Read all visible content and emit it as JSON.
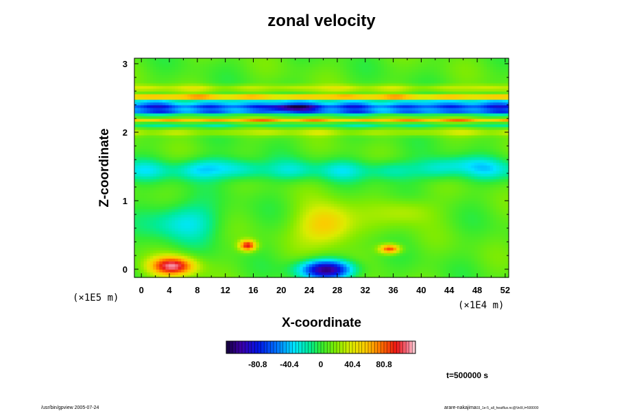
{
  "chart_data": {
    "type": "heatmap",
    "title": "zonal velocity",
    "xlabel": "X-coordinate",
    "ylabel": "Z-coordinate",
    "x_scale_label": "(×1E4 m)",
    "y_scale_label": "(×1E5 m)",
    "xlim": [
      -1,
      52.5
    ],
    "ylim": [
      -0.12,
      3.08
    ],
    "x_ticks": [
      0,
      4,
      8,
      12,
      16,
      20,
      24,
      28,
      32,
      36,
      40,
      44,
      48,
      52
    ],
    "y_ticks": [
      0,
      1,
      2,
      3
    ],
    "colorbar": {
      "vmin": -121,
      "vmax": 121,
      "ticks": [
        -80.8,
        -40.4,
        0,
        40.4,
        80.8
      ],
      "tick_labels": [
        "-80.8",
        "-40.4",
        "0",
        "40.4",
        "80.8"
      ]
    },
    "field": {
      "background": 8,
      "bands": [
        {
          "z": 2.65,
          "width": 0.05,
          "value": 25
        },
        {
          "z": 2.52,
          "width": 0.03,
          "value": 70
        },
        {
          "z": 2.45,
          "width": 0.03,
          "value": -35
        },
        {
          "z": 2.38,
          "width": 0.05,
          "value": -75
        },
        {
          "z": 2.3,
          "width": 0.04,
          "value": -60
        },
        {
          "z": 2.24,
          "width": 0.02,
          "value": 15
        },
        {
          "z": 2.17,
          "width": 0.02,
          "value": 70
        },
        {
          "z": 2.11,
          "width": 0.03,
          "value": -20
        },
        {
          "z": 2.0,
          "width": 0.05,
          "value": 22
        },
        {
          "z": 1.45,
          "width": 0.15,
          "value": -28
        }
      ],
      "blobs": [
        {
          "x": 4.5,
          "z": 0.05,
          "rx": 3.2,
          "rz": 0.14,
          "value": 100
        },
        {
          "x": 26.5,
          "z": 0.0,
          "rx": 3.8,
          "rz": 0.14,
          "value": -115
        },
        {
          "x": 6.0,
          "z": 0.7,
          "rx": 5.0,
          "rz": 0.28,
          "value": -40
        },
        {
          "x": 26.5,
          "z": 0.65,
          "rx": 4.0,
          "rz": 0.3,
          "value": 55
        },
        {
          "x": 15.2,
          "z": 0.35,
          "rx": 1.2,
          "rz": 0.08,
          "value": 90
        },
        {
          "x": 35.5,
          "z": 0.3,
          "rx": 1.5,
          "rz": 0.07,
          "value": 85
        },
        {
          "x": 21.5,
          "z": 2.36,
          "rx": 3.5,
          "rz": 0.04,
          "value": -55
        },
        {
          "x": 46.0,
          "z": 1.55,
          "rx": 5.0,
          "rz": 0.12,
          "value": -18
        },
        {
          "x": 11.0,
          "z": 1.5,
          "rx": 4.0,
          "rz": 0.15,
          "value": -22
        },
        {
          "x": 38.0,
          "z": 0.85,
          "rx": 4.0,
          "rz": 0.2,
          "value": 25
        }
      ]
    },
    "time_label": "t=500000 s",
    "footer_left": "/usr/bin/gpview 2005-07-24",
    "footer_right_main": "arare-nakajima",
    "footer_right_sub": "03_1e-5_all_heatflux.nc@VelX,t=500000"
  }
}
